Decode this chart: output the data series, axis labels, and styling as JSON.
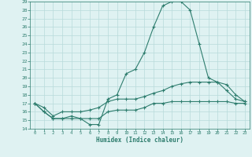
{
  "xlabel": "Humidex (Indice chaleur)",
  "x": [
    0,
    1,
    2,
    3,
    4,
    5,
    6,
    7,
    8,
    9,
    10,
    11,
    12,
    13,
    14,
    15,
    16,
    17,
    18,
    19,
    20,
    21,
    22,
    23
  ],
  "line_max": [
    17,
    16,
    15.2,
    15.2,
    15.5,
    15.2,
    14.5,
    14.5,
    17.5,
    18,
    20.5,
    21,
    23,
    26,
    28.5,
    29,
    29,
    28,
    24,
    20,
    19.5,
    18.5,
    17.5,
    17.2
  ],
  "line_mean": [
    17,
    16.5,
    15.5,
    16,
    16,
    16,
    16.2,
    16.5,
    17.2,
    17.5,
    17.5,
    17.5,
    17.8,
    18.2,
    18.5,
    19,
    19.3,
    19.5,
    19.5,
    19.5,
    19.5,
    19.2,
    18,
    17.2
  ],
  "line_min": [
    17,
    16,
    15.2,
    15.2,
    15.2,
    15.2,
    15.2,
    15.2,
    16,
    16.2,
    16.2,
    16.2,
    16.5,
    17,
    17,
    17.2,
    17.2,
    17.2,
    17.2,
    17.2,
    17.2,
    17.2,
    17,
    17
  ],
  "ylim": [
    14,
    29
  ],
  "xlim": [
    -0.5,
    23.5
  ],
  "yticks": [
    14,
    15,
    16,
    17,
    18,
    19,
    20,
    21,
    22,
    23,
    24,
    25,
    26,
    27,
    28,
    29
  ],
  "xticks": [
    0,
    1,
    2,
    3,
    4,
    5,
    6,
    7,
    8,
    9,
    10,
    11,
    12,
    13,
    14,
    15,
    16,
    17,
    18,
    19,
    20,
    21,
    22,
    23
  ],
  "line_color": "#2e7d6e",
  "bg_color": "#dff2f2",
  "grid_color": "#b8dada",
  "fig_bg": "#dff2f2"
}
